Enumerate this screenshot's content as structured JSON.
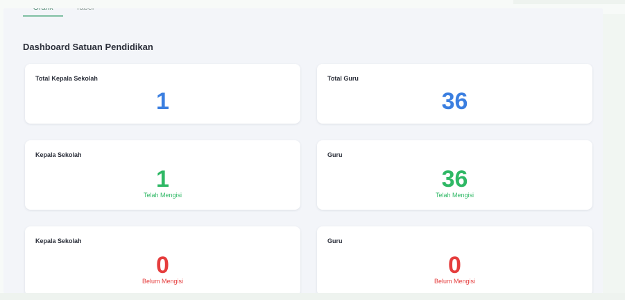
{
  "tabs": [
    {
      "label": "Grafik",
      "active": true
    },
    {
      "label": "Tabel",
      "active": false
    }
  ],
  "section_title": "Dashboard Satuan Pendidikan",
  "cards": [
    {
      "label": "Total Kepala Sekolah",
      "value": "1",
      "status": ""
    },
    {
      "label": "Total Guru",
      "value": "36",
      "status": ""
    },
    {
      "label": "Kepala Sekolah",
      "value": "1",
      "status": "Telah Mengisi"
    },
    {
      "label": "Guru",
      "value": "36",
      "status": "Telah Mengisi"
    },
    {
      "label": "Kepala Sekolah",
      "value": "0",
      "status": "Belum Mengisi"
    },
    {
      "label": "Guru",
      "value": "0",
      "status": "Belum Mengisi"
    }
  ],
  "colors": {
    "total_value": "#3b7fe0",
    "filled_value": "#2fb865",
    "unfilled_value": "#e53d3d"
  }
}
